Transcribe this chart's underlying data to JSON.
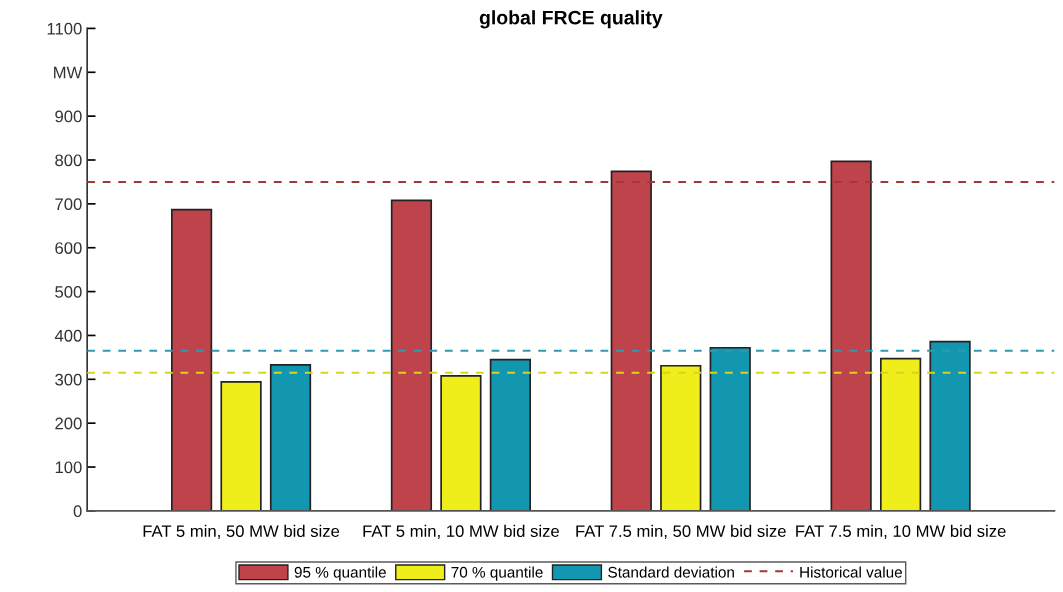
{
  "chart_data": {
    "type": "bar",
    "title": "global FRCE quality",
    "categories": [
      "FAT 5 min, 50 MW bid size",
      "FAT 5 min, 10 MW bid size",
      "FAT 7.5 min, 50 MW bid size",
      "FAT 7.5 min, 10 MW bid size"
    ],
    "series": [
      {
        "name": "95 % quantile",
        "color": "#be434b",
        "values": [
          687,
          708,
          774,
          797
        ]
      },
      {
        "name": "70 % quantile",
        "color": "#f0ee1a",
        "values": [
          294,
          308,
          331,
          347
        ]
      },
      {
        "name": "Standard deviation",
        "color": "#1397b0",
        "values": [
          333,
          345,
          372,
          386
        ]
      }
    ],
    "ylim": [
      0,
      1100
    ],
    "yticks": [
      0,
      100,
      200,
      300,
      400,
      500,
      600,
      700,
      800,
      900,
      {
        "value": 1000,
        "label": "MW"
      },
      1100
    ],
    "ref_lines": [
      {
        "axis": "y",
        "value": 750,
        "label": "Historical value",
        "color": "#a3363c",
        "line_style": "dashed"
      },
      {
        "axis": "y",
        "value": 365,
        "color": "#2d9bb0",
        "line_style": "dashed"
      },
      {
        "axis": "y",
        "value": 315,
        "color": "#d8d320",
        "line_style": "dashed"
      }
    ],
    "grid": false,
    "legend": "bottom"
  }
}
